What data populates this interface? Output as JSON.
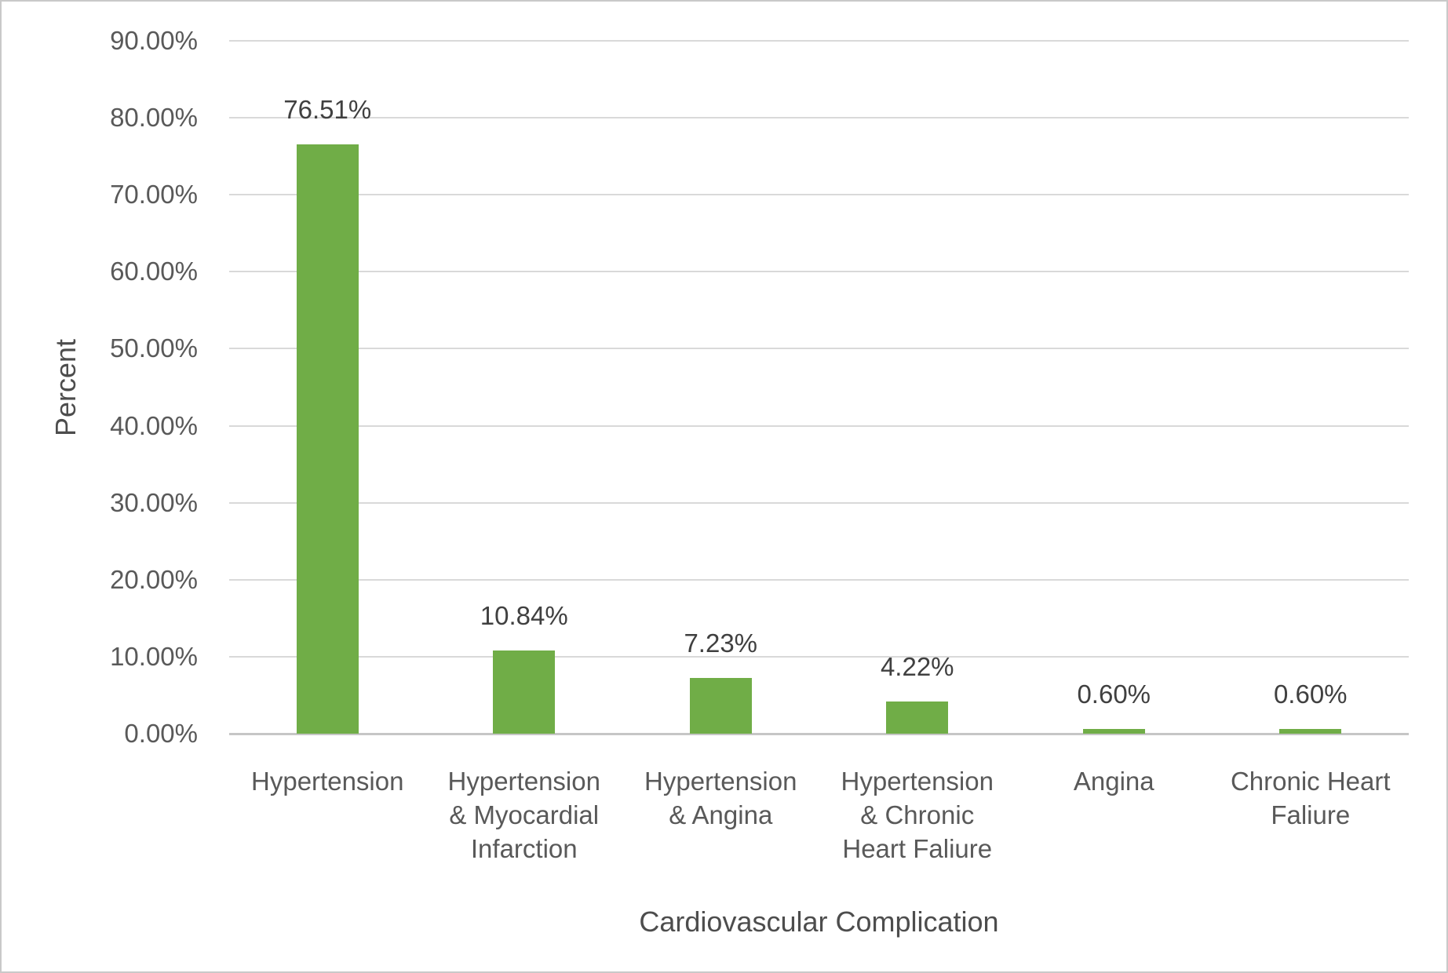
{
  "chart_data": {
    "type": "bar",
    "title": "",
    "xlabel": "Cardiovascular Complication",
    "ylabel": "Percent",
    "categories": [
      "Hypertension",
      "Hypertension\n& Myocardial\nInfarction",
      "Hypertension\n& Angina",
      "Hypertension\n& Chronic\nHeart Faliure",
      "Angina",
      "Chronic Heart\nFaliure"
    ],
    "values": [
      76.51,
      10.84,
      7.23,
      4.22,
      0.6,
      0.6
    ],
    "value_labels": [
      "76.51%",
      "10.84%",
      "7.23%",
      "4.22%",
      "0.60%",
      "0.60%"
    ],
    "y_ticks": [
      "90.00%",
      "80.00%",
      "70.00%",
      "60.00%",
      "50.00%",
      "40.00%",
      "30.00%",
      "20.00%",
      "10.00%",
      "0.00%"
    ],
    "ylim": [
      0,
      90
    ],
    "y_tick_step": 10,
    "grid": true,
    "legend": "none",
    "colors": {
      "bar": "#70AD47",
      "gridline": "#D9D9D9",
      "axis_line": "#C6C6C6",
      "tick_text": "#595959",
      "value_text": "#404040",
      "title_text": "#4D4D4D"
    }
  }
}
